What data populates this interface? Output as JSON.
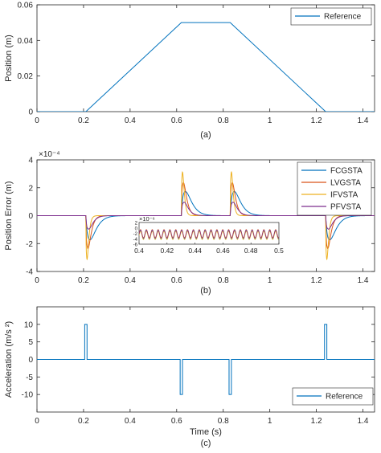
{
  "chart_data": [
    {
      "type": "line",
      "subplot_label": "(a)",
      "xlabel": "",
      "ylabel": "Position (m)",
      "xlim": [
        0,
        1.45
      ],
      "ylim": [
        0,
        0.06
      ],
      "xticks": [
        0,
        0.2,
        0.4,
        0.6,
        0.8,
        1,
        1.2,
        1.4
      ],
      "xtick_labels": [
        "0",
        "0.2",
        "0.4",
        "0.6",
        "0.8",
        "1",
        "1.2",
        "1.4"
      ],
      "yticks": [
        0,
        0.02,
        0.04,
        0.06
      ],
      "ytick_labels": [
        "0",
        "0.02",
        "0.04",
        "0.06"
      ],
      "grid": false,
      "legend_position": "top-right",
      "series": [
        {
          "name": "Reference",
          "color": "#0072BD",
          "x": [
            0,
            0.21,
            0.62,
            0.83,
            1.24,
            1.45
          ],
          "y": [
            0,
            0,
            0.05,
            0.05,
            0,
            0
          ]
        }
      ]
    },
    {
      "type": "line",
      "subplot_label": "(b)",
      "xlabel": "",
      "ylabel": "Position Error (m)",
      "y_exponent": "×10⁻⁴",
      "xlim": [
        0,
        1.45
      ],
      "ylim": [
        -4,
        4
      ],
      "xticks": [
        0,
        0.2,
        0.4,
        0.6,
        0.8,
        1,
        1.2,
        1.4
      ],
      "xtick_labels": [
        "0",
        "0.2",
        "0.4",
        "0.6",
        "0.8",
        "1",
        "1.2",
        "1.4"
      ],
      "yticks": [
        -4,
        -2,
        0,
        2,
        4
      ],
      "ytick_labels": [
        "-4",
        "-2",
        "0",
        "2",
        "4"
      ],
      "grid": false,
      "legend_position": "top-right",
      "events": [
        {
          "t": 0.21,
          "sign": -1
        },
        {
          "t": 0.62,
          "sign": 1
        },
        {
          "t": 0.83,
          "sign": 1
        },
        {
          "t": 1.24,
          "sign": -1
        }
      ],
      "series": [
        {
          "name": "FCGSTA",
          "color": "#0072BD",
          "peak": 1.7,
          "delay": 0.015,
          "decay": 0.018
        },
        {
          "name": "LVGSTA",
          "color": "#D95319",
          "peak": 2.2,
          "delay": 0.006,
          "decay": 0.009
        },
        {
          "name": "IFVSTA",
          "color": "#EDB120",
          "peak": 2.8,
          "delay": 0.003,
          "decay": 0.005
        },
        {
          "name": "PFVSTA",
          "color": "#7E2F8E",
          "peak": 0.9,
          "delay": 0.008,
          "decay": 0.012
        }
      ],
      "inset": {
        "exponent_label": "×10⁻⁶",
        "xlim": [
          0.4,
          0.5
        ],
        "ylim": [
          -6,
          2
        ],
        "xticks": [
          0.4,
          0.42,
          0.44,
          0.46,
          0.48,
          0.5
        ],
        "xtick_labels": [
          "0.4",
          "0.42",
          "0.44",
          "0.46",
          "0.48",
          "0.5"
        ],
        "yticks": [
          -6,
          -4,
          -2,
          0,
          2
        ],
        "ytick_labels": [
          "-6",
          "-4",
          "-2",
          "0",
          "2"
        ],
        "oscillation": {
          "center": -2.5,
          "amplitude": 1.5,
          "period": 0.0042
        }
      }
    },
    {
      "type": "line",
      "subplot_label": "(c)",
      "xlabel": "Time (s)",
      "ylabel": "Acceleration (m/s ²)",
      "xlim": [
        0,
        1.45
      ],
      "ylim": [
        -15,
        15
      ],
      "xticks": [
        0,
        0.2,
        0.4,
        0.6,
        0.8,
        1,
        1.2,
        1.4
      ],
      "xtick_labels": [
        "0",
        "0.2",
        "0.4",
        "0.6",
        "0.8",
        "1",
        "1.2",
        "1.4"
      ],
      "yticks": [
        -10,
        -5,
        0,
        5,
        10
      ],
      "ytick_labels": [
        "-10",
        "-5",
        "0",
        "5",
        "10"
      ],
      "grid": false,
      "legend_position": "bottom-right",
      "series": [
        {
          "name": "Reference",
          "color": "#0072BD",
          "x": [
            0,
            0.205,
            0.205,
            0.215,
            0.215,
            0.615,
            0.615,
            0.625,
            0.625,
            0.825,
            0.825,
            0.835,
            0.835,
            1.235,
            1.235,
            1.245,
            1.245,
            1.45
          ],
          "y": [
            0,
            0,
            10,
            10,
            0,
            0,
            -10,
            -10,
            0,
            0,
            -10,
            -10,
            0,
            0,
            10,
            10,
            0,
            0
          ]
        }
      ]
    }
  ]
}
